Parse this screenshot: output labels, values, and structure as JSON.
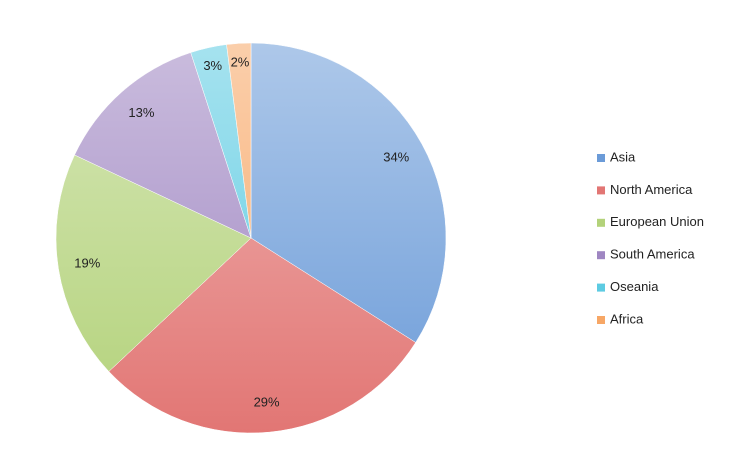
{
  "chart_data": {
    "type": "pie",
    "categories": [
      "Asia",
      "North America",
      "European Union",
      "South America",
      "Oseania",
      "Africa"
    ],
    "values": [
      34,
      29,
      19,
      13,
      3,
      2
    ],
    "value_labels": [
      "34%",
      "29%",
      "19%",
      "13%",
      "3%",
      "2%"
    ],
    "colors": [
      "#6b9bd8",
      "#e27674",
      "#b3d27a",
      "#9f86c2",
      "#5dcbe2",
      "#f7a766"
    ],
    "legend": "right"
  }
}
